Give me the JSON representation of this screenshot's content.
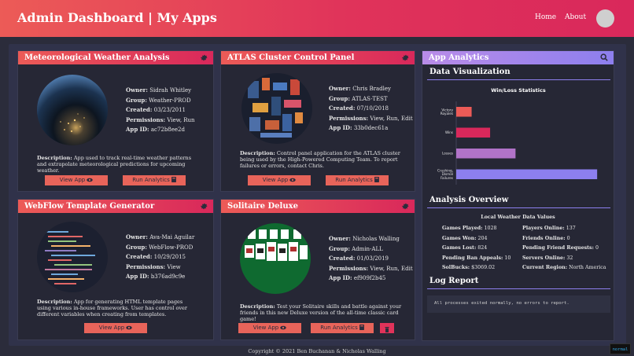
{
  "header": {
    "title": "Admin Dashboard | My Apps",
    "nav": [
      "Home",
      "About"
    ]
  },
  "apps": [
    {
      "title": "Meteorological Weather Analysis",
      "owner": "Sidrah Whitley",
      "group": "Weather-PROD",
      "created": "03/23/2011",
      "permissions": "View, Run",
      "app_id": "ac72b8ee2d",
      "description": "App used to track real-time weather patterns and extrapolate meteorological predictions for upcoming weather.",
      "view_label": "View App",
      "run_label": "Run Analytics"
    },
    {
      "title": "ATLAS Cluster Control Panel",
      "owner": "Chris Bradley",
      "group": "ATLAS-TEST",
      "created": "07/10/2018",
      "permissions": "View, Run, Edit",
      "app_id": "33b0dec61a",
      "description": "Control panel application for the ATLAS cluster being used by the High-Powered Computing Team. To report failures or errors, contact Chris.",
      "view_label": "View App",
      "run_label": "Run Analytics"
    },
    {
      "title": "WebFlow Template Generator",
      "owner": "Ava-Mai Aguilar",
      "group": "WebFlow-PROD",
      "created": "10/29/2015",
      "permissions": "View",
      "app_id": "b376ad9c9e",
      "description": "App for generating HTML template pages using various in-house frameworks. User has control over different variables when creating from templates.",
      "view_label": "View App"
    },
    {
      "title": "Solitaire Deluxe",
      "owner": "Nicholas Walling",
      "group": "Admin-ALL",
      "created": "01/03/2019",
      "permissions": "View, Run, Edit",
      "app_id": "ef909f2b45",
      "description": "Test your Solitaire skills and battle against your friends in this new Deluxe version of the all-time classic card game!",
      "view_label": "View App",
      "run_label": "Run Analytics"
    }
  ],
  "labels": {
    "owner": "Owner:",
    "group": "Group:",
    "created": "Created:",
    "permissions": "Permissions:",
    "app_id": "App ID:",
    "description": "Description:"
  },
  "analytics": {
    "title": "App Analytics",
    "data_viz_heading": "Data Visualization",
    "overview_heading": "Analysis Overview",
    "log_heading": "Log Report",
    "log_text": "All processes exited normally, no errors to report.",
    "overview_title": "Local Weather Data Values",
    "overview_left": [
      {
        "label": "Games Played:",
        "value": "1028"
      },
      {
        "label": "Games Won:",
        "value": "204"
      },
      {
        "label": "Games Lost:",
        "value": "824"
      },
      {
        "label": "Pending Ban Appeals:",
        "value": "10"
      },
      {
        "label": "SolBucks:",
        "value": "$3069.02"
      }
    ],
    "overview_right": [
      {
        "label": "Players Online:",
        "value": "137"
      },
      {
        "label": "Friends Online:",
        "value": "0"
      },
      {
        "label": "Pending Friend Requests:",
        "value": "0"
      },
      {
        "label": "Servers Online:",
        "value": "32"
      },
      {
        "label": "Current Region:",
        "value": "North America"
      }
    ]
  },
  "chart_data": {
    "type": "bar",
    "orientation": "horizontal",
    "title": "Win/Loss Statistics",
    "categories": [
      "Victory Royales",
      "Wins",
      "Losses",
      "Crushing, Dismal Failures"
    ],
    "values": [
      20,
      44,
      77,
      183
    ],
    "colors": [
      "#ec5b57",
      "#d9285b",
      "#b173c8",
      "#8d7fee"
    ],
    "xlim": [
      0,
      190
    ],
    "grid": false
  },
  "footer": {
    "copyright": "Copyright © 2021 Ben Buchanan & Nicholas Walling"
  },
  "status": {
    "mode": "normal"
  },
  "theme": {
    "accent": "#e0335a",
    "accent_orange": "#ec5b57",
    "analytics_purple": "#8d7fee",
    "background": "#2b2c3b"
  }
}
